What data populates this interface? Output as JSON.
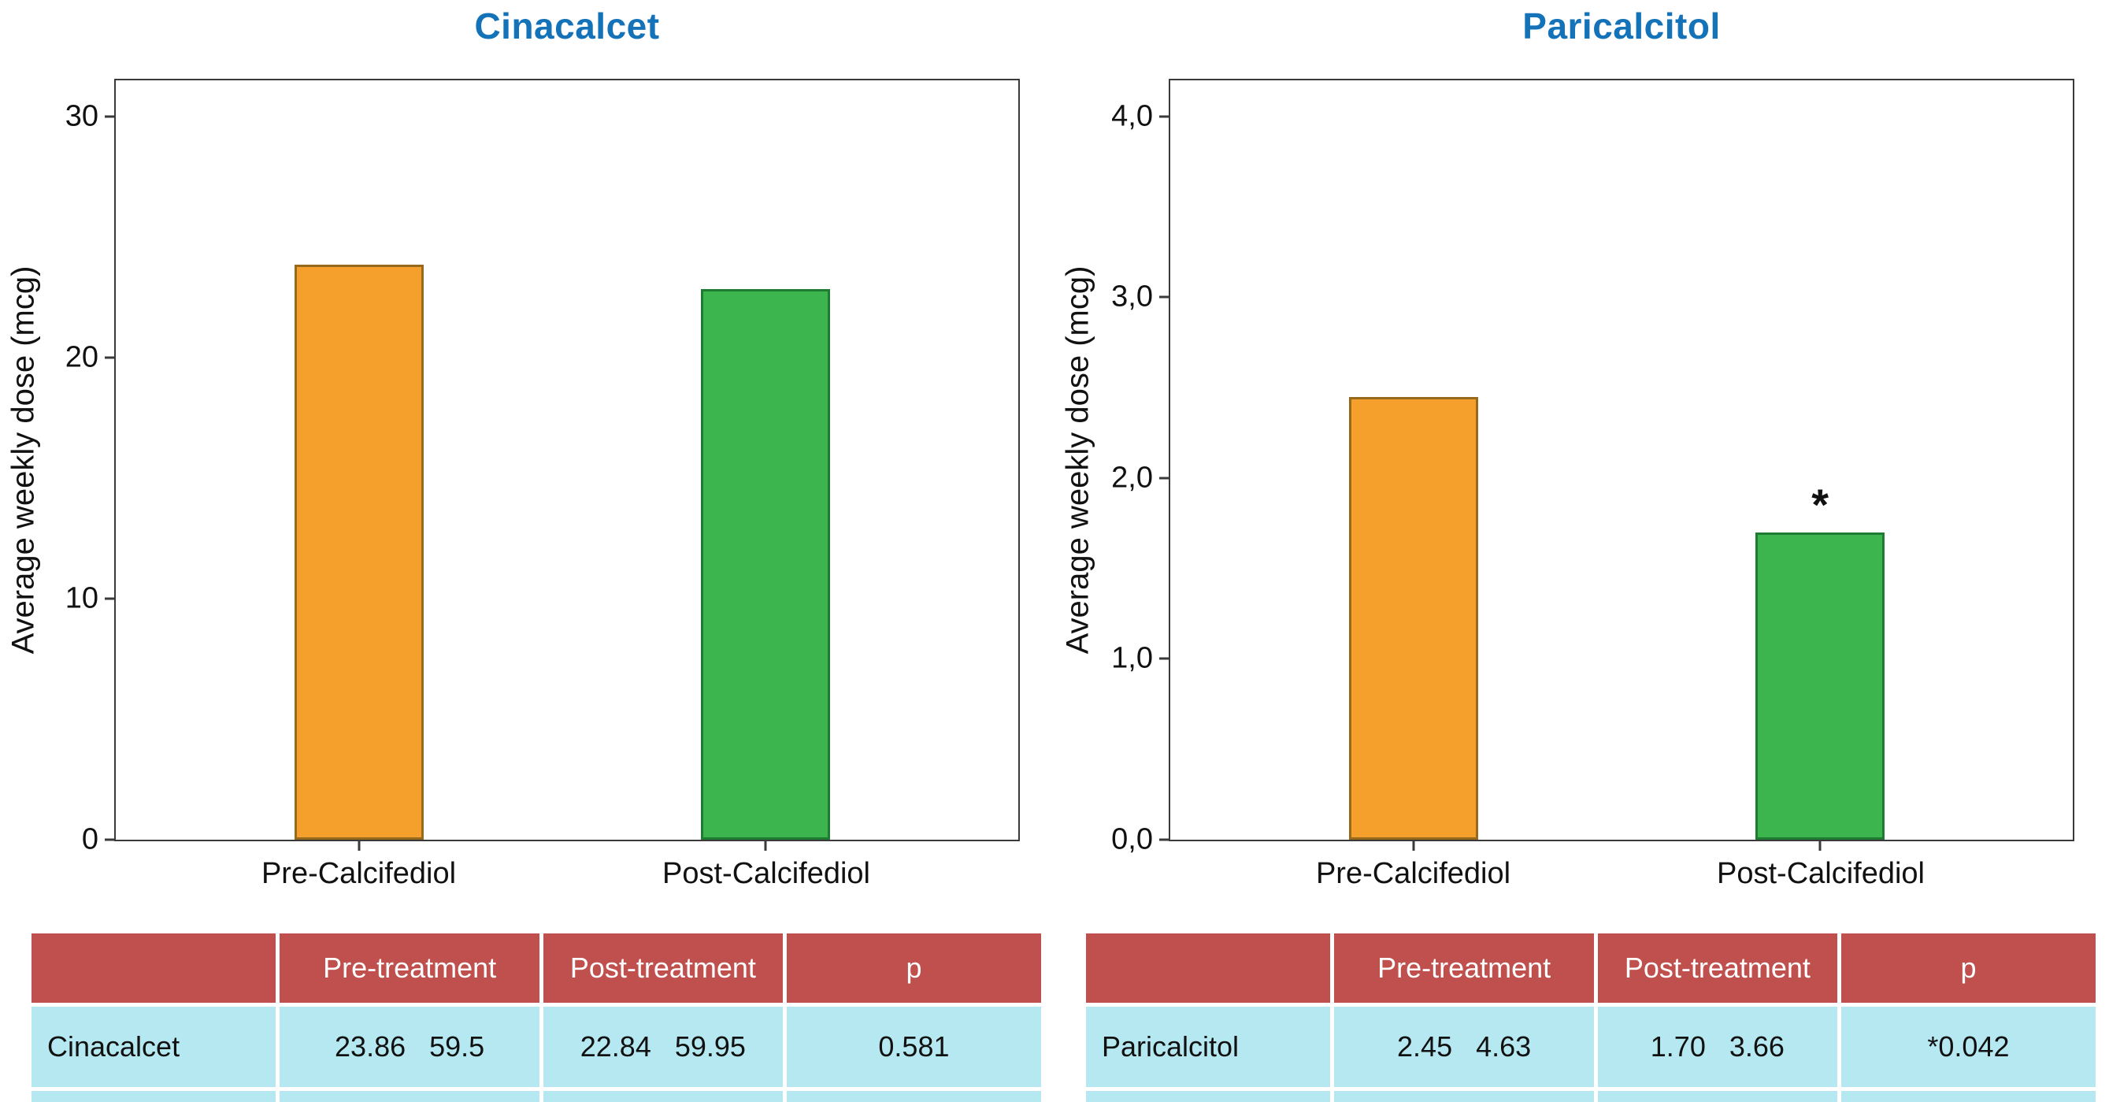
{
  "chart_data": [
    {
      "type": "bar",
      "title": "Cinacalcet",
      "title_color": "#1473B8",
      "ylabel": "Average weekly dose (mcg)",
      "categories": [
        "Pre-Calcifediol",
        "Post-Calcifediol"
      ],
      "values": [
        23.86,
        22.84
      ],
      "bar_colors": [
        "#F5A02D",
        "#3CB54E"
      ],
      "bar_border_colors": [
        "#96691C",
        "#1F7A32"
      ],
      "yticks": [
        0,
        10,
        20,
        30
      ],
      "ytick_labels": [
        "0",
        "10",
        "20",
        "30"
      ],
      "ylim": [
        0,
        31.5
      ],
      "grid": false,
      "legend": false,
      "annotation": null
    },
    {
      "type": "bar",
      "title": "Paricalcitol",
      "title_color": "#1473B8",
      "ylabel": "Average weekly dose (mcg)",
      "categories": [
        "Pre-Calcifediol",
        "Post-Calcifediol"
      ],
      "values": [
        2.45,
        1.7
      ],
      "bar_colors": [
        "#F5A02D",
        "#3CB54E"
      ],
      "bar_border_colors": [
        "#96691C",
        "#1F7A32"
      ],
      "yticks": [
        0,
        1,
        2,
        3,
        4
      ],
      "ytick_labels": [
        "0,0",
        "1,0",
        "2,0",
        "3,0",
        "4,0"
      ],
      "ylim": [
        0,
        4.2
      ],
      "grid": false,
      "legend": false,
      "annotation": {
        "text": "*",
        "bar_index": 1
      }
    }
  ],
  "tables": [
    {
      "header_bg": "#C0504D",
      "row_bg": "#B5E8F0",
      "headers": [
        "",
        "Pre-treatment",
        "Post-treatment",
        "p"
      ],
      "rows": [
        {
          "label": "Cinacalcet",
          "pre": [
            "23.86",
            "59.5"
          ],
          "post": [
            "22.84",
            "59.95"
          ],
          "p": "0.581"
        }
      ]
    },
    {
      "header_bg": "#C0504D",
      "row_bg": "#B5E8F0",
      "headers": [
        "",
        "Pre-treatment",
        "Post-treatment",
        "p"
      ],
      "rows": [
        {
          "label": "Paricalcitol",
          "pre": [
            "2.45",
            "4.63"
          ],
          "post": [
            "1.70",
            "3.66"
          ],
          "p": "*0.042"
        }
      ]
    }
  ]
}
